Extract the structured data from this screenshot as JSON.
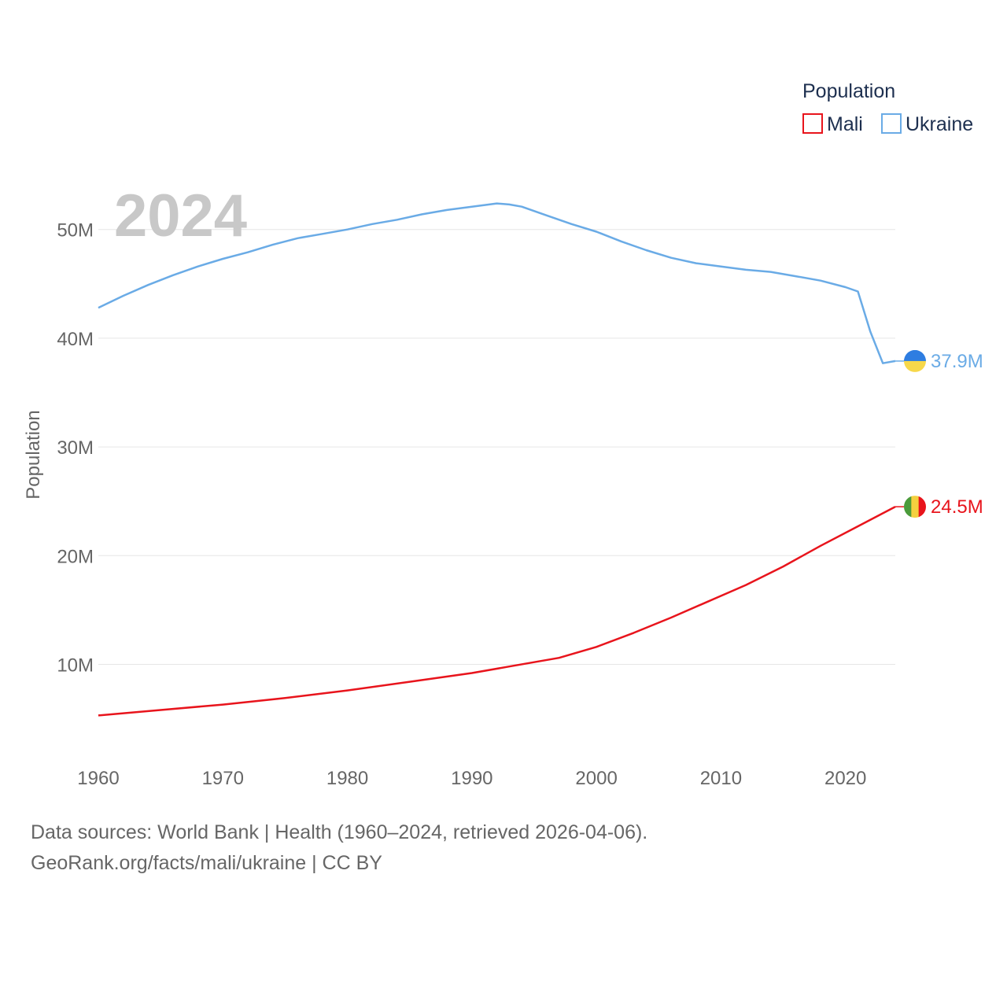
{
  "chart_data": {
    "type": "line",
    "current_year": "2024",
    "ylabel": "Population",
    "xlim": [
      1960,
      2024
    ],
    "ylim": [
      2000000,
      57000000
    ],
    "y_ticks": [
      10000000,
      20000000,
      30000000,
      40000000,
      50000000
    ],
    "y_tick_labels": [
      "10M",
      "20M",
      "30M",
      "40M",
      "50M"
    ],
    "x_ticks": [
      1960,
      1970,
      1980,
      1990,
      2000,
      2010,
      2020
    ],
    "x_tick_labels": [
      "1960",
      "1970",
      "1980",
      "1990",
      "2000",
      "2010",
      "2020"
    ],
    "legend": {
      "title": "Population",
      "position": "top-right"
    },
    "series": [
      {
        "name": "Mali",
        "color": "#e8141c",
        "end_label": "24.5M",
        "flag_colors": [
          "#4a9b3a",
          "#f4d03f",
          "#e8141c"
        ],
        "points": [
          [
            1960,
            5300000
          ],
          [
            1965,
            5800000
          ],
          [
            1970,
            6300000
          ],
          [
            1975,
            6900000
          ],
          [
            1980,
            7600000
          ],
          [
            1985,
            8400000
          ],
          [
            1990,
            9200000
          ],
          [
            1993,
            9800000
          ],
          [
            1997,
            10600000
          ],
          [
            2000,
            11600000
          ],
          [
            2003,
            12900000
          ],
          [
            2006,
            14300000
          ],
          [
            2009,
            15800000
          ],
          [
            2012,
            17300000
          ],
          [
            2015,
            19000000
          ],
          [
            2018,
            20900000
          ],
          [
            2021,
            22700000
          ],
          [
            2024,
            24500000
          ]
        ]
      },
      {
        "name": "Ukraine",
        "color": "#6aabe6",
        "end_label": "37.9M",
        "flag_colors": [
          "#2e7de1",
          "#f7d84a"
        ],
        "points": [
          [
            1960,
            42800000
          ],
          [
            1962,
            43900000
          ],
          [
            1964,
            44900000
          ],
          [
            1966,
            45800000
          ],
          [
            1968,
            46600000
          ],
          [
            1970,
            47300000
          ],
          [
            1972,
            47900000
          ],
          [
            1974,
            48600000
          ],
          [
            1976,
            49200000
          ],
          [
            1978,
            49600000
          ],
          [
            1980,
            50000000
          ],
          [
            1982,
            50500000
          ],
          [
            1984,
            50900000
          ],
          [
            1986,
            51400000
          ],
          [
            1988,
            51800000
          ],
          [
            1990,
            52100000
          ],
          [
            1992,
            52400000
          ],
          [
            1993,
            52300000
          ],
          [
            1994,
            52100000
          ],
          [
            1996,
            51300000
          ],
          [
            1998,
            50500000
          ],
          [
            2000,
            49800000
          ],
          [
            2002,
            48900000
          ],
          [
            2004,
            48100000
          ],
          [
            2006,
            47400000
          ],
          [
            2008,
            46900000
          ],
          [
            2010,
            46600000
          ],
          [
            2012,
            46300000
          ],
          [
            2014,
            46100000
          ],
          [
            2016,
            45700000
          ],
          [
            2018,
            45300000
          ],
          [
            2020,
            44700000
          ],
          [
            2021,
            44300000
          ],
          [
            2022,
            40600000
          ],
          [
            2023,
            37700000
          ],
          [
            2024,
            37900000
          ]
        ]
      }
    ]
  },
  "footer": {
    "sources": "Data sources: World Bank | Health (1960–2024, retrieved 2026-04-06).",
    "attribution": "GeoRank.org/facts/mali/ukraine | CC BY"
  }
}
